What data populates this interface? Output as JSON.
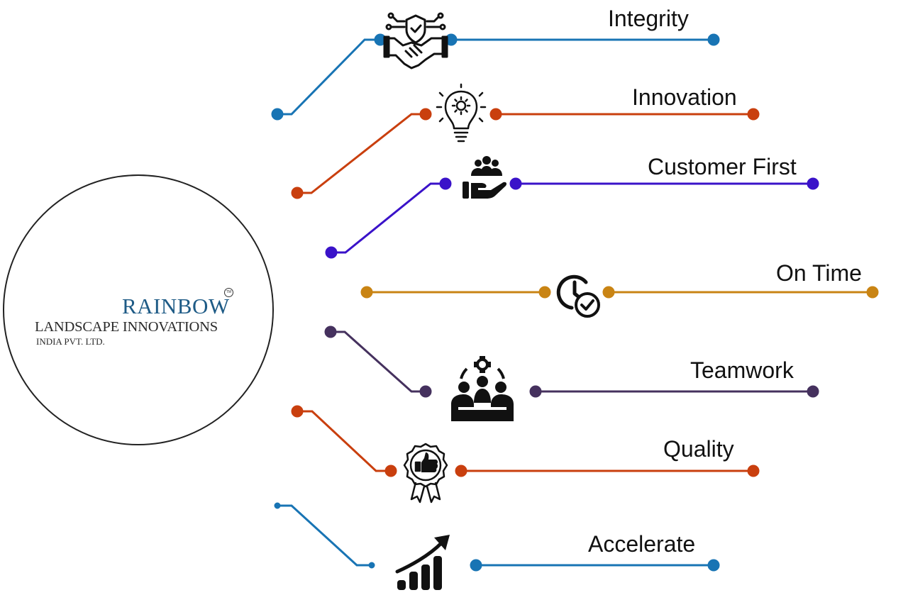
{
  "logo": {
    "brand": "RAINBOW",
    "trademark": "TM",
    "line1": "LANDSCAPE INNOVATIONS",
    "line2": "INDIA PVT. LTD."
  },
  "values": [
    {
      "label": "Integrity",
      "color": "#1874b4",
      "icon": "handshake-shield-icon"
    },
    {
      "label": "Innovation",
      "color": "#c93f0e",
      "icon": "lightbulb-gear-icon"
    },
    {
      "label": "Customer First",
      "color": "#3a12c9",
      "icon": "hand-people-icon"
    },
    {
      "label": "On Time",
      "color": "#c98414",
      "icon": "clock-check-icon"
    },
    {
      "label": "Teamwork",
      "color": "#45315e",
      "icon": "team-gear-icon"
    },
    {
      "label": "Quality",
      "color": "#c93f0e",
      "icon": "badge-thumbsup-icon"
    },
    {
      "label": "Accelerate",
      "color": "#1874b4",
      "icon": "growth-chart-icon"
    }
  ]
}
